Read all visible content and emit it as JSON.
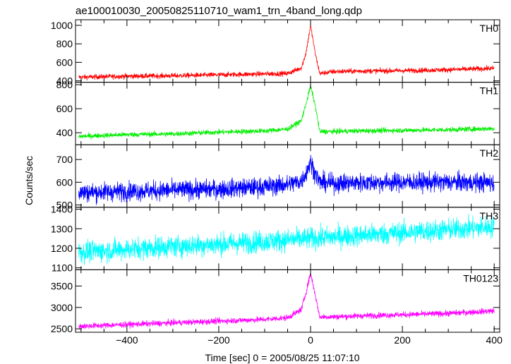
{
  "chart_data": {
    "type": "line",
    "title": "ae100010030_20050825110710_wam1_trn_4band_long.qdp",
    "xlabel": "Time [sec] 0 = 2005/08/25 11:07:10",
    "ylabel": "Counts/sec",
    "xlim": [
      -512,
      412
    ],
    "xticks": [
      -400,
      -200,
      0,
      200,
      400
    ],
    "grid": false,
    "panels": [
      {
        "name": "TH0",
        "color": "#ff0000",
        "ylim": [
          385,
          1060
        ],
        "yticks": [
          400,
          600,
          800,
          1000
        ],
        "noise": 18,
        "x": [
          -500,
          -400,
          -300,
          -200,
          -100,
          -50,
          -20,
          -10,
          0,
          10,
          20,
          50,
          100,
          200,
          300,
          400
        ],
        "y": [
          440,
          450,
          455,
          465,
          475,
          480,
          540,
          700,
          1000,
          700,
          480,
          500,
          505,
          510,
          520,
          535
        ]
      },
      {
        "name": "TH1",
        "color": "#00ee00",
        "ylim": [
          300,
          820
        ],
        "yticks": [
          400,
          600,
          800
        ],
        "noise": 14,
        "x": [
          -500,
          -400,
          -300,
          -200,
          -100,
          -50,
          -20,
          -10,
          0,
          10,
          20,
          50,
          100,
          200,
          300,
          400
        ],
        "y": [
          370,
          385,
          390,
          405,
          415,
          430,
          500,
          640,
          790,
          630,
          410,
          410,
          415,
          420,
          425,
          435
        ]
      },
      {
        "name": "TH2",
        "color": "#0000ff",
        "ylim": [
          490,
          765
        ],
        "yticks": [
          500,
          600,
          700
        ],
        "noise": 28,
        "x": [
          -500,
          -400,
          -300,
          -200,
          -100,
          -50,
          -20,
          -10,
          0,
          10,
          20,
          50,
          100,
          200,
          300,
          400
        ],
        "y": [
          555,
          560,
          565,
          570,
          580,
          590,
          605,
          640,
          690,
          640,
          600,
          595,
          598,
          600,
          600,
          598
        ]
      },
      {
        "name": "TH3",
        "color": "#00ffff",
        "ylim": [
          1090,
          1410
        ],
        "yticks": [
          1100,
          1200,
          1300,
          1400
        ],
        "noise": 38,
        "x": [
          -500,
          -400,
          -300,
          -200,
          -100,
          0,
          100,
          200,
          300,
          400
        ],
        "y": [
          1180,
          1195,
          1210,
          1220,
          1235,
          1250,
          1265,
          1280,
          1295,
          1310
        ]
      },
      {
        "name": "TH0123",
        "color": "#ff00ff",
        "ylim": [
          2420,
          3880
        ],
        "yticks": [
          2500,
          3000,
          3500
        ],
        "noise": 45,
        "x": [
          -500,
          -400,
          -300,
          -200,
          -100,
          -50,
          -20,
          -10,
          0,
          10,
          20,
          50,
          100,
          200,
          300,
          400
        ],
        "y": [
          2560,
          2600,
          2640,
          2680,
          2720,
          2760,
          2950,
          3350,
          3800,
          3300,
          2780,
          2780,
          2800,
          2830,
          2860,
          2920
        ]
      }
    ]
  }
}
